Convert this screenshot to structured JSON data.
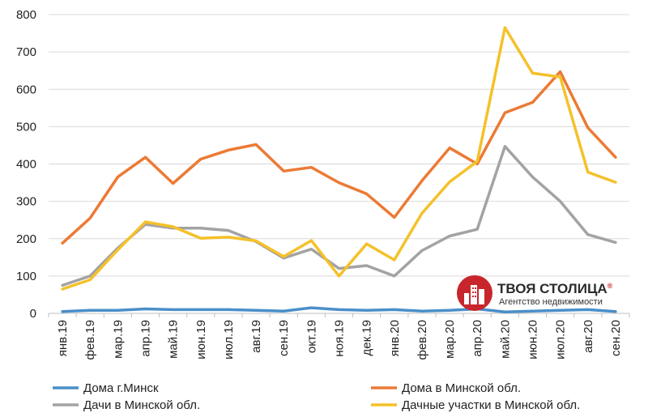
{
  "chart_data": {
    "type": "line",
    "title": "",
    "xlabel": "",
    "ylabel": "",
    "ylim": [
      0,
      800
    ],
    "yticks": [
      0,
      100,
      200,
      300,
      400,
      500,
      600,
      700,
      800
    ],
    "grid": true,
    "legend_position": "bottom",
    "categories": [
      "янв.19",
      "фев.19",
      "мар.19",
      "апр.19",
      "май.19",
      "июн.19",
      "июл.19",
      "авг.19",
      "сен.19",
      "окт.19",
      "ноя.19",
      "дек.19",
      "янв.20",
      "фев.20",
      "мар.20",
      "апр.20",
      "май.20",
      "июн.20",
      "июл.20",
      "авг.20",
      "сен.20"
    ],
    "series": [
      {
        "name": "Дома г.Минск",
        "color": "#4a8fc9",
        "values": [
          5,
          8,
          8,
          12,
          10,
          10,
          10,
          8,
          6,
          15,
          10,
          8,
          10,
          6,
          8,
          12,
          4,
          6,
          8,
          10,
          5
        ]
      },
      {
        "name": "Дома в Минской обл.",
        "color": "#ec7a35",
        "values": [
          188,
          255,
          365,
          418,
          348,
          413,
          437,
          452,
          381,
          391,
          350,
          320,
          257,
          355,
          443,
          400,
          537,
          565,
          647,
          497,
          418
        ]
      },
      {
        "name": "Дачи в Минской обл.",
        "color": "#a3a3a3",
        "values": [
          75,
          100,
          175,
          238,
          228,
          228,
          222,
          192,
          148,
          172,
          120,
          128,
          100,
          168,
          207,
          225,
          447,
          365,
          300,
          211,
          190
        ]
      },
      {
        "name": "Дачные участки в Минской обл.",
        "color": "#f5c12a",
        "values": [
          65,
          90,
          170,
          245,
          232,
          201,
          204,
          194,
          152,
          195,
          100,
          186,
          143,
          268,
          352,
          407,
          765,
          643,
          633,
          378,
          351
        ]
      }
    ]
  },
  "logo": {
    "name": "ТВОЯ СТОЛИЦА",
    "registered": "®",
    "tagline": "Агентство недвижимости",
    "color": "#c8262c"
  }
}
